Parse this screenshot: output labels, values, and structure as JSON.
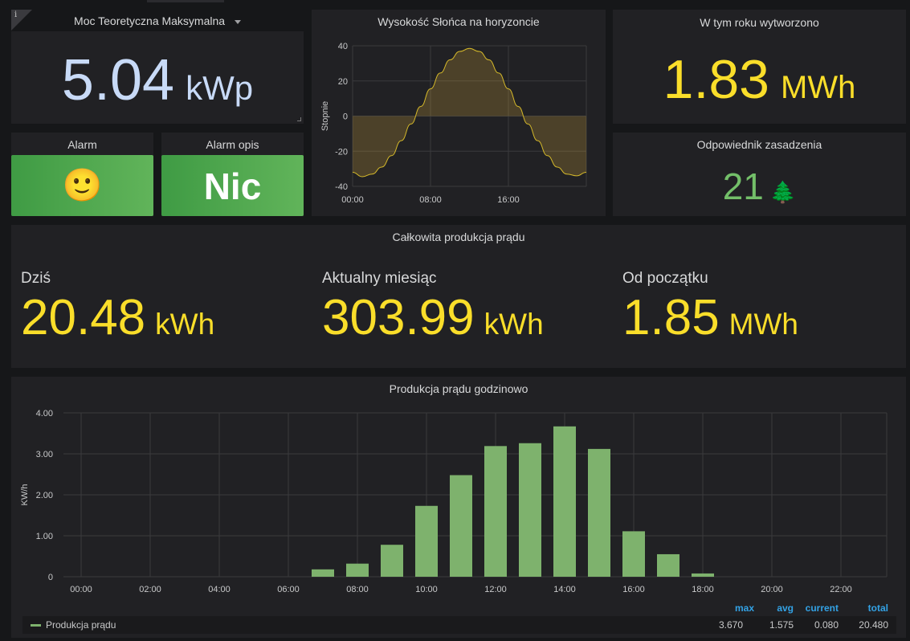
{
  "max_power": {
    "title": "Moc Teoretyczna Maksymalna",
    "value": "5.04",
    "unit": "kWp",
    "info": "i"
  },
  "alarm": {
    "title": "Alarm",
    "emoji": "🙂"
  },
  "alarm_desc": {
    "title": "Alarm opis",
    "value": "Nic"
  },
  "sun": {
    "title": "Wysokość Słońca na horyzoncie",
    "chart_data": {
      "type": "area",
      "ylabel": "Stopnie",
      "ylim": [
        -40,
        40
      ],
      "yticks": [
        "40",
        "20",
        "0",
        "-20",
        "-40"
      ],
      "xticks": [
        "00:00",
        "08:00",
        "16:00"
      ],
      "x_hours": [
        0,
        1,
        2,
        3,
        4,
        5,
        6,
        7,
        8,
        9,
        10,
        11,
        12,
        13,
        14,
        15,
        16,
        17,
        18,
        19,
        20,
        21,
        22,
        23,
        24
      ],
      "values": [
        -32,
        -34.5,
        -33,
        -29,
        -22.5,
        -14,
        -4.5,
        5.5,
        15.5,
        24.5,
        32,
        36.8,
        38.5,
        36.8,
        32,
        24.5,
        15.5,
        5.5,
        -4.5,
        -14,
        -22.5,
        -29,
        -33,
        -34,
        -32
      ]
    }
  },
  "year_prod": {
    "title": "W tym roku wytworzono",
    "value": "1.83",
    "unit": "MWh"
  },
  "trees": {
    "title": "Odpowiednik zasadzenia",
    "value": "21",
    "emoji": "🌲"
  },
  "total": {
    "title": "Całkowita produkcja prądu",
    "stats": [
      {
        "label": "Dziś",
        "value": "20.48",
        "unit": "kWh"
      },
      {
        "label": "Aktualny miesiąc",
        "value": "303.99",
        "unit": "kWh"
      },
      {
        "label": "Od początku",
        "value": "1.85",
        "unit": "MWh"
      }
    ]
  },
  "hourly": {
    "title": "Produkcja prądu godzinowo",
    "chart_data": {
      "type": "bar",
      "ylabel": "KW/h",
      "ylim": [
        0,
        4
      ],
      "yticks": [
        "4.00",
        "3.00",
        "2.00",
        "1.00",
        "0"
      ],
      "xticks": [
        "00:00",
        "02:00",
        "04:00",
        "06:00",
        "08:00",
        "10:00",
        "12:00",
        "14:00",
        "16:00",
        "18:00",
        "20:00",
        "22:00"
      ],
      "bars": [
        {
          "hour": 7,
          "value": 0.18
        },
        {
          "hour": 8,
          "value": 0.32
        },
        {
          "hour": 9,
          "value": 0.78
        },
        {
          "hour": 10,
          "value": 1.73
        },
        {
          "hour": 11,
          "value": 2.48
        },
        {
          "hour": 12,
          "value": 3.19
        },
        {
          "hour": 13,
          "value": 3.26
        },
        {
          "hour": 14,
          "value": 3.67
        },
        {
          "hour": 15,
          "value": 3.12
        },
        {
          "hour": 16,
          "value": 1.11
        },
        {
          "hour": 17,
          "value": 0.55
        },
        {
          "hour": 18,
          "value": 0.08
        }
      ],
      "bar_color": "#7eb26d"
    },
    "legend": {
      "headers": [
        "max",
        "avg",
        "current",
        "total"
      ],
      "series_name": "Produkcja prądu",
      "values": [
        "3.670",
        "1.575",
        "0.080",
        "20.480"
      ]
    }
  },
  "colors": {
    "value_blue": "#c8daf7",
    "value_yellow": "#fade2a",
    "value_green": "#73bf69",
    "legend_header": "#33a2e5"
  }
}
